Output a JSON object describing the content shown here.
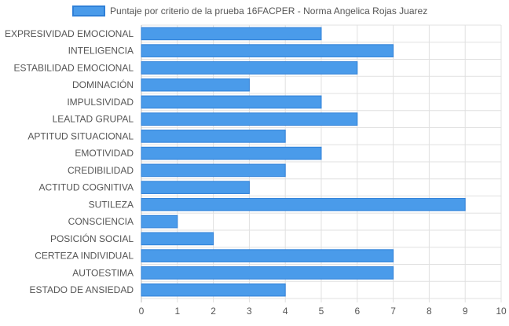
{
  "chart_data": {
    "type": "bar",
    "orientation": "horizontal",
    "categories": [
      "EXPRESIVIDAD EMOCIONAL",
      "INTELIGENCIA",
      "ESTABILIDAD EMOCIONAL",
      "DOMINACIÓN",
      "IMPULSIVIDAD",
      "LEALTAD GRUPAL",
      "APTITUD SITUACIONAL",
      "EMOTIVIDAD",
      "CREDIBILIDAD",
      "ACTITUD COGNITIVA",
      "SUTILEZA",
      "CONSCIENCIA",
      "POSICIÓN SOCIAL",
      "CERTEZA INDIVIDUAL",
      "AUTOESTIMA",
      "ESTADO DE ANSIEDAD"
    ],
    "series": [
      {
        "name": "Puntaje por criterio de la prueba 16FACPER - Norma Angelica Rojas Juarez",
        "values": [
          5,
          7,
          6,
          3,
          5,
          6,
          4,
          5,
          4,
          3,
          9,
          1,
          2,
          7,
          7,
          4
        ],
        "color": "#4a9bea",
        "border_color": "#2f80d8"
      }
    ],
    "xlim": [
      0,
      10
    ],
    "x_ticks": [
      "0",
      "1",
      "2",
      "3",
      "4",
      "5",
      "6",
      "7",
      "8",
      "9",
      "10"
    ],
    "grid": true,
    "legend_position": "top",
    "colors": {
      "grid": "#e0e0e0",
      "axis": "#bdbdbd",
      "text": "#555555"
    }
  }
}
